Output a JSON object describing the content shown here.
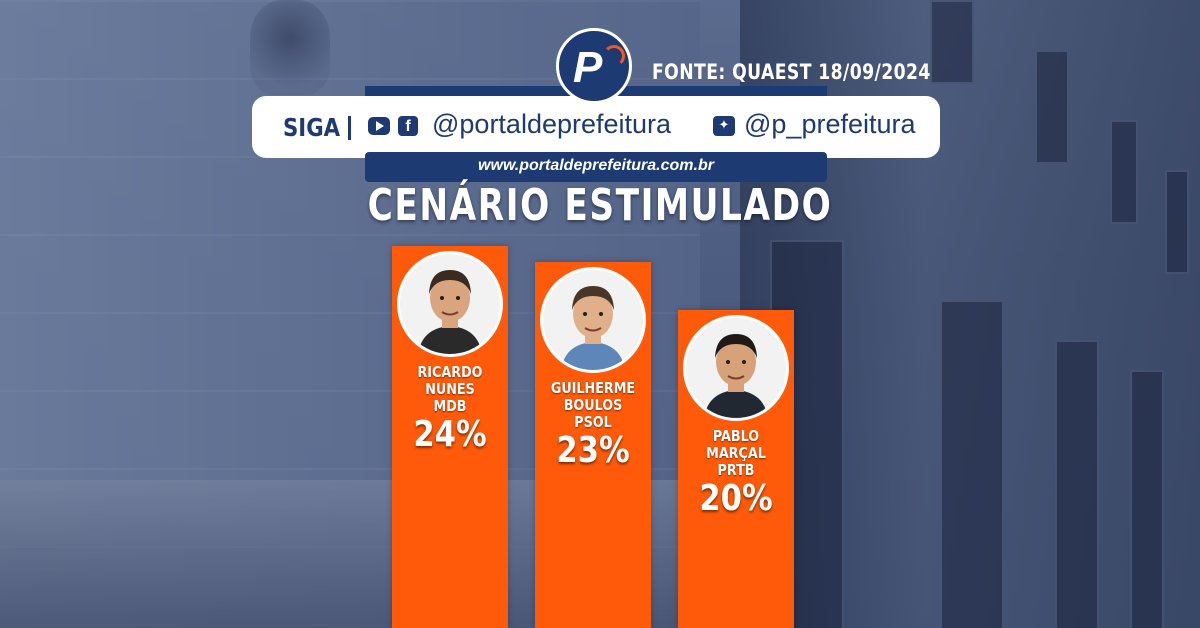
{
  "header": {
    "source": "FONTE: QUAEST 18/09/2024",
    "follow_label": "SIGA",
    "facebook_handle": "@portaldeprefeitura",
    "twitter_handle": "@p_prefeitura",
    "website": "www.portaldeprefeitura.com.br",
    "icons": [
      "youtube-icon",
      "facebook-icon",
      "twitter-icon"
    ]
  },
  "colors": {
    "bar": "#ff5a0a",
    "brand_blue": "#1d3a72",
    "accent": "#f05a23"
  },
  "chart_data": {
    "type": "bar",
    "title": "CENÁRIO ESTIMULADO",
    "categories": [
      "RICARDO NUNES",
      "GUILHERME BOULOS",
      "PABLO MARÇAL"
    ],
    "parties": [
      "MDB",
      "PSOL",
      "PRTB"
    ],
    "values": [
      24,
      23,
      20
    ],
    "value_labels": [
      "24%",
      "23%",
      "20%"
    ],
    "unit": "%",
    "grid": false,
    "legend": "none"
  }
}
